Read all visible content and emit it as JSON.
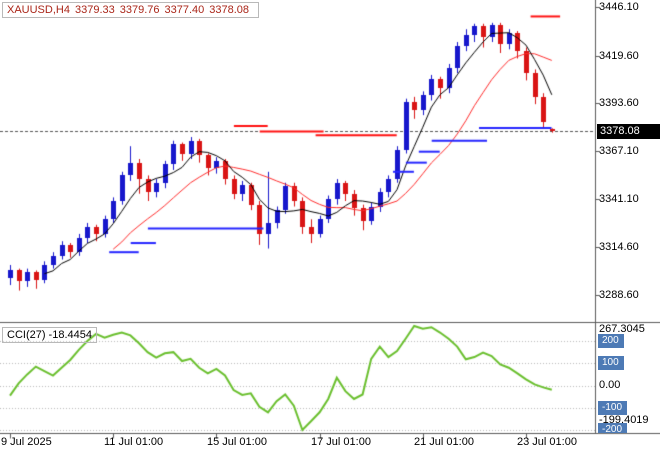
{
  "header": {
    "symbol": "XAUUSD,H4",
    "open": "3379.33",
    "high": "3379.76",
    "low": "3377.40",
    "close": "3378.08"
  },
  "price_axis": {
    "labels": [
      "3446.10",
      "3419.60",
      "3393.60",
      "3367.10",
      "3341.10",
      "3314.60",
      "3288.60"
    ],
    "prices": [
      3446.1,
      3419.6,
      3393.6,
      3367.1,
      3341.1,
      3314.6,
      3288.6
    ]
  },
  "time_axis": {
    "labels": [
      "9 Jul 2025",
      "11 Jul 01:00",
      "15 Jul 01:00",
      "17 Jul 01:00",
      "21 Jul 01:00",
      "23 Jul 01:00"
    ],
    "tick_indices": [
      0,
      12,
      24,
      36,
      48,
      60
    ]
  },
  "current_price": {
    "label": "3378.08",
    "value": 3378.08
  },
  "indicator": {
    "label": "CCI(27) -18.4454",
    "name": "CCI",
    "period": 27,
    "current_value": -18.4454,
    "max_label": "267.3045",
    "min_label": "-199.4019",
    "levels": [
      {
        "value": 200,
        "label": "200",
        "badge": true
      },
      {
        "value": 100,
        "label": "100",
        "badge": true
      },
      {
        "value": 0,
        "label": "0.00",
        "badge": false
      },
      {
        "value": -100,
        "label": "-100",
        "badge": true
      },
      {
        "value": -200,
        "label": "-200",
        "badge": true
      }
    ]
  },
  "colors": {
    "bull": "#1717cc",
    "bear": "#d91414",
    "ma_fast": "#000000",
    "ma_slow": "#ff2a2a",
    "support_line": "#2424ff",
    "resistance_line": "#ff1111",
    "cci_line": "#6abf2e",
    "level_badge_bg": "#4d7ab5",
    "price_badge_bg": "#000000",
    "header_text": "#aa2619",
    "axis_line": "#5a5a5a",
    "level_dotted": "#b8b8b8",
    "price_dash": "#555555"
  },
  "chart_data": {
    "type": "candlestick",
    "symbol": "XAUUSD",
    "timeframe": "H4",
    "title": "XAUUSD,H4 3379.33 3379.76 3377.40 3378.08",
    "price_scale": {
      "top": 3450.0,
      "bottom": 3273.8
    },
    "candles_ohlc": [
      [
        3298,
        3305,
        3294,
        3302
      ],
      [
        3302,
        3303,
        3291,
        3296
      ],
      [
        3296,
        3303,
        3293,
        3301
      ],
      [
        3301,
        3302,
        3292,
        3297
      ],
      [
        3297,
        3307,
        3295,
        3305
      ],
      [
        3305,
        3312,
        3303,
        3310
      ],
      [
        3310,
        3318,
        3308,
        3316
      ],
      [
        3316,
        3317,
        3309,
        3312
      ],
      [
        3312,
        3322,
        3310,
        3320
      ],
      [
        3320,
        3328,
        3317,
        3326
      ],
      [
        3326,
        3327,
        3318,
        3322
      ],
      [
        3322,
        3332,
        3320,
        3330
      ],
      [
        3330,
        3342,
        3328,
        3340
      ],
      [
        3340,
        3356,
        3338,
        3354
      ],
      [
        3354,
        3370,
        3351,
        3361
      ],
      [
        3361,
        3363,
        3344,
        3352
      ],
      [
        3352,
        3354,
        3340,
        3345
      ],
      [
        3345,
        3352,
        3342,
        3350
      ],
      [
        3350,
        3362,
        3347,
        3360
      ],
      [
        3360,
        3373,
        3357,
        3371
      ],
      [
        3371,
        3372,
        3362,
        3366
      ],
      [
        3366,
        3375,
        3363,
        3373
      ],
      [
        3373,
        3374,
        3361,
        3365
      ],
      [
        3365,
        3366,
        3354,
        3358
      ],
      [
        3358,
        3364,
        3355,
        3362
      ],
      [
        3362,
        3363,
        3349,
        3352
      ],
      [
        3352,
        3354,
        3341,
        3344
      ],
      [
        3344,
        3351,
        3340,
        3349
      ],
      [
        3349,
        3350,
        3335,
        3338
      ],
      [
        3338,
        3340,
        3316,
        3322
      ],
      [
        3322,
        3356,
        3314,
        3328
      ],
      [
        3328,
        3337,
        3325,
        3335
      ],
      [
        3335,
        3350,
        3333,
        3348
      ],
      [
        3348,
        3350,
        3337,
        3340
      ],
      [
        3340,
        3342,
        3322,
        3326
      ],
      [
        3326,
        3330,
        3317,
        3322
      ],
      [
        3322,
        3332,
        3320,
        3330
      ],
      [
        3330,
        3343,
        3328,
        3341
      ],
      [
        3341,
        3352,
        3338,
        3350
      ],
      [
        3350,
        3351,
        3340,
        3344
      ],
      [
        3344,
        3346,
        3332,
        3336
      ],
      [
        3336,
        3338,
        3324,
        3329
      ],
      [
        3329,
        3339,
        3327,
        3337
      ],
      [
        3337,
        3347,
        3334,
        3345
      ],
      [
        3345,
        3354,
        3342,
        3352
      ],
      [
        3352,
        3370,
        3350,
        3368
      ],
      [
        3368,
        3396,
        3366,
        3394
      ],
      [
        3394,
        3397,
        3385,
        3390
      ],
      [
        3390,
        3400,
        3387,
        3398
      ],
      [
        3398,
        3409,
        3395,
        3407
      ],
      [
        3407,
        3408,
        3396,
        3402
      ],
      [
        3402,
        3415,
        3399,
        3413
      ],
      [
        3413,
        3427,
        3410,
        3425
      ],
      [
        3425,
        3434,
        3422,
        3431
      ],
      [
        3431,
        3437,
        3427,
        3436
      ],
      [
        3436,
        3437,
        3424,
        3430
      ],
      [
        3430,
        3437.5,
        3427,
        3436.5
      ],
      [
        3436.5,
        3437.5,
        3421,
        3426
      ],
      [
        3426,
        3434,
        3423,
        3432
      ],
      [
        3432,
        3433,
        3418,
        3422
      ],
      [
        3422,
        3424,
        3406,
        3410
      ],
      [
        3410,
        3412,
        3393,
        3397
      ],
      [
        3397,
        3399,
        3380,
        3383.5
      ],
      [
        3379.33,
        3379.76,
        3377.4,
        3378.08
      ]
    ],
    "overlays": {
      "ma_fast": {
        "type": "sma",
        "period": 5
      },
      "ma_slow": {
        "type": "sma",
        "period": 13
      },
      "support_steps": [
        [
          12,
          14.5,
          3312
        ],
        [
          14.5,
          16.5,
          3317
        ],
        [
          16.5,
          29,
          3325
        ],
        [
          45,
          46.5,
          3356
        ],
        [
          46.5,
          48,
          3361
        ],
        [
          48,
          49.5,
          3367
        ],
        [
          49.5,
          55,
          3373
        ],
        [
          55,
          62.5,
          3380
        ]
      ],
      "resistance_steps": [
        [
          26.5,
          29.5,
          3381
        ],
        [
          29.5,
          36,
          3378
        ],
        [
          36,
          44.5,
          3376
        ],
        [
          61,
          63.5,
          3441
        ]
      ]
    },
    "indicator_cci": {
      "period": 27,
      "range_min": -199.4019,
      "range_max": 267.3045,
      "levels": [
        200,
        100,
        0,
        -100,
        -200
      ],
      "values": [
        -45,
        10,
        50,
        85,
        65,
        45,
        80,
        115,
        160,
        200,
        232,
        215,
        228,
        238,
        225,
        190,
        150,
        125,
        145,
        150,
        110,
        120,
        80,
        55,
        75,
        45,
        -20,
        -42,
        -35,
        -95,
        -120,
        -70,
        -40,
        -90,
        -199.4019,
        -160,
        -120,
        -60,
        35,
        -25,
        -60,
        -40,
        120,
        175,
        128,
        155,
        210,
        267.3045,
        255,
        262,
        238,
        210,
        175,
        118,
        128,
        148,
        132,
        95,
        80,
        55,
        28,
        5,
        -8,
        -18.4454
      ]
    }
  }
}
